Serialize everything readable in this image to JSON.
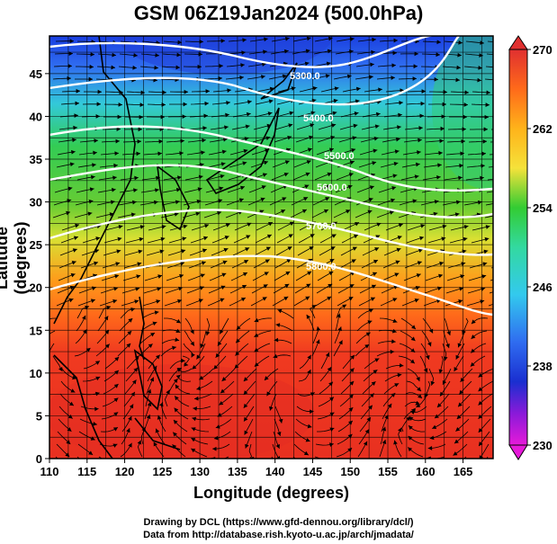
{
  "title": "GSM 06Z19Jan2024 (500.0hPa)",
  "x_axis_label": "Longitude (degrees)",
  "y_axis_label": "Latitude  (degrees)",
  "x_ticks": [
    "110",
    "115",
    "120",
    "125",
    "130",
    "135",
    "140",
    "145",
    "150",
    "155",
    "160",
    "165"
  ],
  "y_ticks": [
    "0",
    "5",
    "10",
    "15",
    "20",
    "25",
    "30",
    "35",
    "40",
    "45"
  ],
  "colorbar": {
    "labels": [
      "270",
      "262",
      "254",
      "246",
      "238",
      "230"
    ],
    "colors": [
      "#e03030",
      "#ff8c1a",
      "#f5e23a",
      "#33cc33",
      "#33d9d9",
      "#3399ff",
      "#1a3fe0",
      "#8a1ad9",
      "#e61ad9"
    ]
  },
  "contours": [
    {
      "label": "5300.0"
    },
    {
      "label": "5400.0"
    },
    {
      "label": "5500.0"
    },
    {
      "label": "5600.0"
    },
    {
      "label": "5700.0"
    },
    {
      "label": "5800.0"
    }
  ],
  "credits": [
    "Drawing by DCL (https://www.gfd-dennou.org/library/dcl/)",
    "Data from http://database.rish.kyoto-u.ac.jp/arch/jmadata/"
  ]
}
